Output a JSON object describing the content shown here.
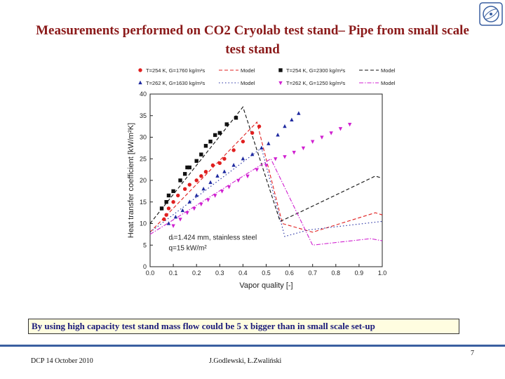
{
  "title": "Measurements performed on CO2 Cryolab test stand– Pipe from small scale test stand",
  "callout": "By using high capacity test stand mass flow could be 5 x bigger than in small scale set-up",
  "footer": {
    "left": "DCP 14 October 2010",
    "authors": "J.Godlewski, Ł.Zwaliński",
    "page": "7"
  },
  "logo": {
    "icon": "cern-logo-icon",
    "color": "#3a5fa0"
  },
  "chart_data": {
    "type": "scatter",
    "xlabel": "Vapor quality [-]",
    "ylabel": "Heat transfer coefficient [kW/m²K]",
    "xlim": [
      0.0,
      1.0
    ],
    "ylim": [
      0,
      40
    ],
    "xticks": [
      "0.0",
      "0.1",
      "0.2",
      "0.3",
      "0.4",
      "0.5",
      "0.6",
      "0.7",
      "0.8",
      "0.9",
      "1.0"
    ],
    "yticks": [
      "0",
      "5",
      "10",
      "15",
      "20",
      "25",
      "30",
      "35",
      "40"
    ],
    "annotation": [
      "dᵢ=1.424 mm, stainless steel",
      "q=15 kW/m²"
    ],
    "legend_position": "top",
    "series": [
      {
        "name": "T=254 K, G=1760 kg/m²s",
        "model_label": "Model",
        "color": "#e02020",
        "marker": "circle",
        "points": [
          [
            0.06,
            11
          ],
          [
            0.07,
            12
          ],
          [
            0.08,
            13.5
          ],
          [
            0.1,
            15
          ],
          [
            0.12,
            16.5
          ],
          [
            0.15,
            18
          ],
          [
            0.17,
            19
          ],
          [
            0.2,
            20
          ],
          [
            0.22,
            21
          ],
          [
            0.24,
            22
          ],
          [
            0.27,
            23.5
          ],
          [
            0.3,
            24
          ],
          [
            0.32,
            25
          ],
          [
            0.36,
            27
          ],
          [
            0.4,
            29
          ],
          [
            0.44,
            31
          ],
          [
            0.47,
            32.5
          ]
        ],
        "model": [
          [
            0,
            8
          ],
          [
            0.46,
            33.5
          ],
          [
            0.57,
            10
          ],
          [
            0.7,
            8
          ],
          [
            0.97,
            12.5
          ],
          [
            1.0,
            12
          ]
        ]
      },
      {
        "name": "T=254 K, G=2300 kg/m²s",
        "model_label": "Model",
        "color": "#111111",
        "marker": "square",
        "points": [
          [
            0.05,
            13.5
          ],
          [
            0.07,
            15
          ],
          [
            0.08,
            16.5
          ],
          [
            0.1,
            17.5
          ],
          [
            0.13,
            20
          ],
          [
            0.15,
            21.5
          ],
          [
            0.16,
            23
          ],
          [
            0.17,
            23
          ],
          [
            0.2,
            24.5
          ],
          [
            0.22,
            26
          ],
          [
            0.24,
            28
          ],
          [
            0.26,
            29
          ],
          [
            0.28,
            30.5
          ],
          [
            0.3,
            31
          ],
          [
            0.33,
            33
          ],
          [
            0.37,
            34.5
          ]
        ],
        "model": [
          [
            0,
            10
          ],
          [
            0.4,
            37
          ],
          [
            0.56,
            10.5
          ],
          [
            0.66,
            13
          ],
          [
            0.97,
            21
          ],
          [
            1.0,
            20.5
          ]
        ]
      },
      {
        "name": "T=262 K, G=1630 kg/m²s",
        "model_label": "Model",
        "color": "#1f2aa0",
        "marker": "triangle-up",
        "points": [
          [
            0.08,
            10
          ],
          [
            0.11,
            11.5
          ],
          [
            0.14,
            13
          ],
          [
            0.17,
            15
          ],
          [
            0.2,
            16.5
          ],
          [
            0.23,
            18
          ],
          [
            0.26,
            19.5
          ],
          [
            0.29,
            21
          ],
          [
            0.32,
            22
          ],
          [
            0.36,
            23.5
          ],
          [
            0.4,
            25
          ],
          [
            0.44,
            26
          ],
          [
            0.48,
            27.5
          ],
          [
            0.51,
            28.5
          ],
          [
            0.55,
            30.5
          ],
          [
            0.58,
            32.5
          ],
          [
            0.61,
            34
          ],
          [
            0.64,
            35.5
          ]
        ],
        "model": [
          [
            0,
            8
          ],
          [
            0.48,
            27.5
          ],
          [
            0.58,
            7
          ],
          [
            0.68,
            8.5
          ],
          [
            1.0,
            10.5
          ]
        ]
      },
      {
        "name": "T=262 K, G=1250 kg/m²s",
        "model_label": "Model",
        "color": "#d020d0",
        "marker": "triangle-down",
        "points": [
          [
            0.1,
            9.5
          ],
          [
            0.13,
            11
          ],
          [
            0.16,
            12.5
          ],
          [
            0.19,
            13.5
          ],
          [
            0.22,
            14.5
          ],
          [
            0.25,
            15.5
          ],
          [
            0.28,
            16.5
          ],
          [
            0.31,
            17.5
          ],
          [
            0.34,
            18.5
          ],
          [
            0.38,
            20
          ],
          [
            0.42,
            21
          ],
          [
            0.46,
            22.5
          ],
          [
            0.5,
            23.5
          ],
          [
            0.54,
            25
          ],
          [
            0.58,
            25.5
          ],
          [
            0.62,
            26.5
          ],
          [
            0.66,
            27.5
          ],
          [
            0.7,
            29
          ],
          [
            0.74,
            30
          ],
          [
            0.78,
            31
          ],
          [
            0.82,
            32
          ],
          [
            0.86,
            33
          ]
        ],
        "model": [
          [
            0,
            7.5
          ],
          [
            0.52,
            25
          ],
          [
            0.7,
            5
          ],
          [
            0.95,
            6.5
          ],
          [
            1.0,
            6
          ]
        ]
      }
    ]
  }
}
